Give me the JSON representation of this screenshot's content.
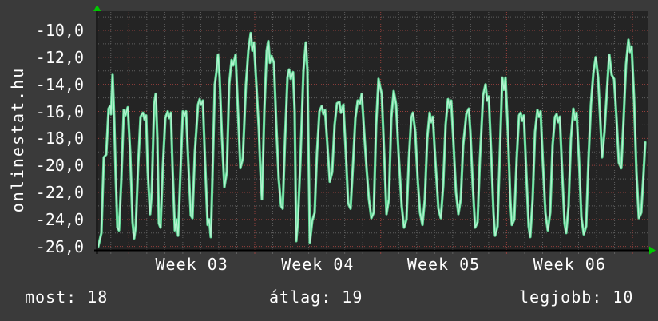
{
  "branding": {
    "site_label": "onlinestat.hu"
  },
  "stats": {
    "now": "most: 18",
    "average": "átlag: 19",
    "best": "legjobb: 10"
  },
  "colors": {
    "page_bg": "#3a3a3a",
    "plot_bg": "#242424",
    "text": "#ffffff",
    "grid_minor": "#5f5f5f",
    "grid_major": "#96403c",
    "axis": "#000000",
    "axis_arrow": "#00c800",
    "line": "#5fd795",
    "line_highlight": "#b2f3cf"
  },
  "chart_data": {
    "type": "line",
    "title": "",
    "xlabel": "",
    "ylabel": "",
    "legend": [],
    "grid": "dotted, red major / gray minor",
    "ylim": [
      -26.3,
      -8.6
    ],
    "y_tick_labels": [
      "-10,0",
      "-12,0",
      "-14,0",
      "-16,0",
      "-18,0",
      "-20,0",
      "-22,0",
      "-24,0",
      "-26,0"
    ],
    "y_tick_values": [
      -10,
      -12,
      -14,
      -16,
      -18,
      -20,
      -22,
      -24,
      -26
    ],
    "y_minor_values": [
      -9,
      -11,
      -13,
      -15,
      -17,
      -19,
      -21,
      -23,
      -25
    ],
    "x_tick_labels": [
      "Week 03",
      "Week 04",
      "Week 05",
      "Week 06"
    ],
    "x_axis": {
      "unit": "day",
      "days_per_week": 7,
      "weeks_visible": 4.4
    },
    "summary": {
      "now": 18,
      "average": 19,
      "best": 10
    },
    "points": [
      [
        0,
        -26.0
      ],
      [
        4,
        -25.0
      ],
      [
        7,
        -19.4
      ],
      [
        10,
        -19.2
      ],
      [
        13,
        -15.8
      ],
      [
        15,
        -15.6
      ],
      [
        16,
        -16.2
      ],
      [
        18,
        -13.3
      ],
      [
        20,
        -16.5
      ],
      [
        22,
        -21.0
      ],
      [
        24,
        -24.6
      ],
      [
        26,
        -24.8
      ],
      [
        29,
        -21.0
      ],
      [
        32,
        -15.9
      ],
      [
        34,
        -16.3
      ],
      [
        37,
        -15.7
      ],
      [
        40,
        -19.0
      ],
      [
        43,
        -24.2
      ],
      [
        45,
        -25.4
      ],
      [
        47,
        -24.5
      ],
      [
        50,
        -20.0
      ],
      [
        53,
        -16.4
      ],
      [
        56,
        -16.1
      ],
      [
        58,
        -16.6
      ],
      [
        60,
        -16.3
      ],
      [
        62,
        -20.5
      ],
      [
        65,
        -23.6
      ],
      [
        67,
        -22.0
      ],
      [
        70,
        -15.5
      ],
      [
        72,
        -14.7
      ],
      [
        74,
        -18.0
      ],
      [
        76,
        -24.3
      ],
      [
        78,
        -24.6
      ],
      [
        81,
        -20.0
      ],
      [
        84,
        -16.5
      ],
      [
        87,
        -16.0
      ],
      [
        89,
        -16.5
      ],
      [
        91,
        -16.1
      ],
      [
        93,
        -20.0
      ],
      [
        96,
        -24.8
      ],
      [
        98,
        -24.0
      ],
      [
        100,
        -25.2
      ],
      [
        103,
        -20.5
      ],
      [
        106,
        -16.0
      ],
      [
        108,
        -16.3
      ],
      [
        110,
        -16.0
      ],
      [
        113,
        -20.0
      ],
      [
        116,
        -23.7
      ],
      [
        118,
        -23.9
      ],
      [
        121,
        -19.0
      ],
      [
        125,
        -15.5
      ],
      [
        127,
        -15.1
      ],
      [
        129,
        -15.5
      ],
      [
        131,
        -15.2
      ],
      [
        134,
        -20.0
      ],
      [
        137,
        -24.4
      ],
      [
        139,
        -24.0
      ],
      [
        141,
        -25.3
      ],
      [
        143,
        -21.0
      ],
      [
        146,
        -14.0
      ],
      [
        148,
        -13.1
      ],
      [
        150,
        -11.8
      ],
      [
        152,
        -13.5
      ],
      [
        155,
        -18.0
      ],
      [
        158,
        -21.6
      ],
      [
        161,
        -20.5
      ],
      [
        164,
        -14.0
      ],
      [
        167,
        -12.2
      ],
      [
        169,
        -12.6
      ],
      [
        172,
        -11.8
      ],
      [
        175,
        -16.0
      ],
      [
        178,
        -20.2
      ],
      [
        181,
        -19.5
      ],
      [
        185,
        -14.0
      ],
      [
        188,
        -11.5
      ],
      [
        191,
        -10.2
      ],
      [
        193,
        -11.5
      ],
      [
        195,
        -10.9
      ],
      [
        198,
        -14.0
      ],
      [
        201,
        -17.2
      ],
      [
        203,
        -20.3
      ],
      [
        205,
        -22.5
      ],
      [
        208,
        -16.0
      ],
      [
        211,
        -11.5
      ],
      [
        213,
        -10.8
      ],
      [
        215,
        -12.4
      ],
      [
        217,
        -11.9
      ],
      [
        220,
        -12.4
      ],
      [
        223,
        -17.0
      ],
      [
        226,
        -21.0
      ],
      [
        229,
        -23.0
      ],
      [
        231,
        -23.2
      ],
      [
        234,
        -18.0
      ],
      [
        237,
        -13.5
      ],
      [
        239,
        -12.9
      ],
      [
        241,
        -13.6
      ],
      [
        244,
        -13.1
      ],
      [
        246,
        -16.0
      ],
      [
        248,
        -25.6
      ],
      [
        250,
        -24.1
      ],
      [
        253,
        -20.0
      ],
      [
        257,
        -13.0
      ],
      [
        260,
        -10.9
      ],
      [
        262,
        -13.0
      ],
      [
        265,
        -25.7
      ],
      [
        268,
        -24.1
      ],
      [
        271,
        -23.5
      ],
      [
        274,
        -19.0
      ],
      [
        277,
        -16.0
      ],
      [
        280,
        -15.6
      ],
      [
        282,
        -16.2
      ],
      [
        284,
        -15.9
      ],
      [
        287,
        -18.5
      ],
      [
        290,
        -21.2
      ],
      [
        293,
        -20.5
      ],
      [
        296,
        -17.0
      ],
      [
        299,
        -15.4
      ],
      [
        302,
        -15.3
      ],
      [
        304,
        -16.1
      ],
      [
        307,
        -15.5
      ],
      [
        310,
        -19.0
      ],
      [
        313,
        -22.8
      ],
      [
        316,
        -23.2
      ],
      [
        319,
        -20.0
      ],
      [
        322,
        -16.5
      ],
      [
        325,
        -15.2
      ],
      [
        328,
        -15.4
      ],
      [
        330,
        -14.7
      ],
      [
        333,
        -17.5
      ],
      [
        336,
        -20.2
      ],
      [
        339,
        -22.5
      ],
      [
        342,
        -23.9
      ],
      [
        345,
        -23.5
      ],
      [
        348,
        -17.0
      ],
      [
        351,
        -13.6
      ],
      [
        353,
        -14.2
      ],
      [
        355,
        -14.7
      ],
      [
        358,
        -19.0
      ],
      [
        361,
        -23.6
      ],
      [
        364,
        -22.5
      ],
      [
        367,
        -16.5
      ],
      [
        370,
        -14.5
      ],
      [
        373,
        -15.5
      ],
      [
        376,
        -19.0
      ],
      [
        380,
        -23.0
      ],
      [
        383,
        -24.6
      ],
      [
        386,
        -24.0
      ],
      [
        389,
        -19.5
      ],
      [
        392,
        -16.5
      ],
      [
        394,
        -16.1
      ],
      [
        397,
        -17.5
      ],
      [
        400,
        -21.0
      ],
      [
        403,
        -23.5
      ],
      [
        406,
        -24.4
      ],
      [
        409,
        -22.5
      ],
      [
        412,
        -18.0
      ],
      [
        415,
        -16.1
      ],
      [
        417,
        -16.8
      ],
      [
        419,
        -16.4
      ],
      [
        422,
        -19.5
      ],
      [
        426,
        -23.2
      ],
      [
        429,
        -23.9
      ],
      [
        432,
        -21.5
      ],
      [
        435,
        -17.0
      ],
      [
        438,
        -15.1
      ],
      [
        440,
        -15.7
      ],
      [
        442,
        -15.2
      ],
      [
        445,
        -18.5
      ],
      [
        448,
        -22.0
      ],
      [
        451,
        -23.6
      ],
      [
        454,
        -22.5
      ],
      [
        457,
        -18.5
      ],
      [
        461,
        -16.2
      ],
      [
        464,
        -15.8
      ],
      [
        466,
        -17.5
      ],
      [
        469,
        -21.5
      ],
      [
        472,
        -24.6
      ],
      [
        475,
        -24.2
      ],
      [
        478,
        -19.5
      ],
      [
        482,
        -14.8
      ],
      [
        485,
        -14.0
      ],
      [
        487,
        -15.2
      ],
      [
        489,
        -14.9
      ],
      [
        492,
        -19.0
      ],
      [
        495,
        -23.5
      ],
      [
        497,
        -25.2
      ],
      [
        500,
        -24.5
      ],
      [
        503,
        -19.0
      ],
      [
        506,
        -13.5
      ],
      [
        508,
        -14.4
      ],
      [
        510,
        -13.5
      ],
      [
        513,
        -17.5
      ],
      [
        516,
        -22.5
      ],
      [
        518,
        -24.4
      ],
      [
        521,
        -24.0
      ],
      [
        524,
        -19.5
      ],
      [
        527,
        -16.3
      ],
      [
        529,
        -16.1
      ],
      [
        531,
        -16.7
      ],
      [
        533,
        -16.3
      ],
      [
        536,
        -20.5
      ],
      [
        539,
        -24.5
      ],
      [
        541,
        -25.3
      ],
      [
        544,
        -22.5
      ],
      [
        547,
        -17.5
      ],
      [
        550,
        -15.9
      ],
      [
        552,
        -16.4
      ],
      [
        554,
        -16.0
      ],
      [
        557,
        -20.0
      ],
      [
        560,
        -23.5
      ],
      [
        563,
        -24.8
      ],
      [
        566,
        -23.5
      ],
      [
        569,
        -18.5
      ],
      [
        572,
        -16.4
      ],
      [
        574,
        -16.2
      ],
      [
        576,
        -16.8
      ],
      [
        578,
        -16.4
      ],
      [
        581,
        -20.5
      ],
      [
        584,
        -24.3
      ],
      [
        586,
        -25.0
      ],
      [
        589,
        -23.0
      ],
      [
        592,
        -18.0
      ],
      [
        595,
        -15.8
      ],
      [
        597,
        -16.6
      ],
      [
        599,
        -16.1
      ],
      [
        602,
        -19.5
      ],
      [
        605,
        -23.8
      ],
      [
        608,
        -25.1
      ],
      [
        611,
        -24.5
      ],
      [
        614,
        -19.5
      ],
      [
        617,
        -15.5
      ],
      [
        620,
        -13.2
      ],
      [
        623,
        -12.0
      ],
      [
        626,
        -13.5
      ],
      [
        629,
        -17.0
      ],
      [
        631,
        -19.4
      ],
      [
        634,
        -17.5
      ],
      [
        637,
        -14.5
      ],
      [
        640,
        -11.8
      ],
      [
        643,
        -13.3
      ],
      [
        646,
        -13.6
      ],
      [
        649,
        -16.5
      ],
      [
        652,
        -19.8
      ],
      [
        655,
        -20.2
      ],
      [
        658,
        -16.5
      ],
      [
        661,
        -12.5
      ],
      [
        664,
        -10.7
      ],
      [
        666,
        -11.6
      ],
      [
        668,
        -11.2
      ],
      [
        671,
        -15.0
      ],
      [
        674,
        -20.5
      ],
      [
        677,
        -23.9
      ],
      [
        680,
        -23.5
      ],
      [
        683,
        -20.5
      ],
      [
        685,
        -18.3
      ]
    ]
  }
}
